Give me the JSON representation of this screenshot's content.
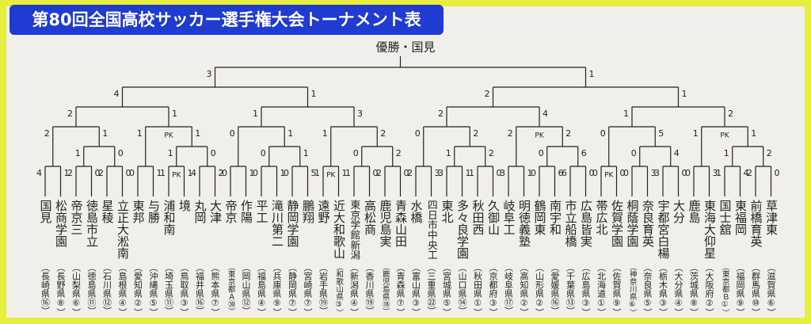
{
  "header": {
    "title": "第80回全国高校サッカー選手権大会トーナメント表",
    "champion": "優勝・国見"
  },
  "bracket": {
    "score": [
      3,
      1
    ],
    "matches": [
      {
        "score": [
          4,
          1
        ],
        "matches": [
          {
            "score": [
              2,
              1
            ],
            "matches": [
              {
                "score": [
                  2,
                  1
                ],
                "matches": [
                  {
                    "score": [
                      4,
                      1
                    ],
                    "matches": [
                      {
                        "name": "国見",
                        "region": "（長崎県⑯）"
                      },
                      {
                        "name": "松商学園",
                        "region": "（長野県⑧）"
                      }
                    ]
                  },
                  {
                    "score": [
                      1,
                      0
                    ],
                    "matches": [
                      {
                        "score": [
                          2,
                          0
                        ],
                        "matches": [
                          {
                            "name": "帝京三",
                            "region": "（山梨県⑥）"
                          },
                          {
                            "name": "徳島市立",
                            "region": "（徳島県⑪）"
                          }
                        ]
                      },
                      {
                        "score": [
                          2,
                          0
                        ],
                        "matches": [
                          {
                            "name": "星稜",
                            "region": "（石川県⑫）"
                          },
                          {
                            "name": "立正大淞南",
                            "region": "（島根県④）"
                          }
                        ]
                      }
                    ]
                  }
                ]
              },
              {
                "score": [
                  1,
                  1
                ],
                "pk": "PK",
                "matches": [
                  {
                    "score": [
                      0,
                      1
                    ],
                    "matches": [
                      {
                        "name": "東邦",
                        "region": "（愛知県②）"
                      },
                      {
                        "name": "与勝",
                        "region": "（沖縄県⑤）"
                      }
                    ]
                  },
                  {
                    "score": [
                      1,
                      0
                    ],
                    "matches": [
                      {
                        "score": [
                          1,
                          1
                        ],
                        "pk": "PK",
                        "matches": [
                          {
                            "name": "浦和南",
                            "region": "（埼玉県⑪）"
                          },
                          {
                            "name": "境",
                            "region": "（鳥取県③）"
                          }
                        ]
                      },
                      {
                        "score": [
                          4,
                          2
                        ],
                        "matches": [
                          {
                            "name": "丸岡",
                            "region": "（福井県⑯）"
                          },
                          {
                            "name": "大津",
                            "region": "（熊本県⑦）"
                          }
                        ]
                      }
                    ]
                  }
                ]
              }
            ]
          },
          {
            "score": [
              1,
              3
            ],
            "matches": [
              {
                "score": [
                  0,
                  1
                ],
                "matches": [
                  {
                    "score": [
                      0,
                      1
                    ],
                    "matches": [
                      {
                        "name": "帝京",
                        "region": "（東京都Ａ㉚）"
                      },
                      {
                        "name": "作陽",
                        "region": "（岡山県⑫）"
                      }
                    ]
                  },
                  {
                    "score": [
                      0,
                      1
                    ],
                    "matches": [
                      {
                        "score": [
                          0,
                          1
                        ],
                        "matches": [
                          {
                            "name": "平工",
                            "region": "（福島県④）"
                          },
                          {
                            "name": "滝川第二",
                            "region": "（兵庫県⑨）"
                          }
                        ]
                      },
                      {
                        "score": [
                          0,
                          5
                        ],
                        "matches": [
                          {
                            "name": "静岡学園",
                            "region": "（静岡県⑦）"
                          },
                          {
                            "name": "鵬翔",
                            "region": "（宮崎県⑦）"
                          }
                        ]
                      }
                    ]
                  }
                ]
              },
              {
                "score": [
                  1,
                  2
                ],
                "matches": [
                  {
                    "score": [
                      1,
                      1
                    ],
                    "pk": "PK",
                    "matches": [
                      {
                        "name": "遠野",
                        "region": "（岩手県⑲）"
                      },
                      {
                        "name": "近大和歌山",
                        "region": "（和歌山県③）"
                      }
                    ]
                  },
                  {
                    "score": [
                      0,
                      2
                    ],
                    "matches": [
                      {
                        "score": [
                          1,
                          0
                        ],
                        "matches": [
                          {
                            "name": "東京学館新潟",
                            "region": "（新潟県④）"
                          },
                          {
                            "name": "高松商",
                            "region": "（香川県⑲）"
                          }
                        ]
                      },
                      {
                        "score": [
                          2,
                          0
                        ],
                        "matches": [
                          {
                            "name": "鹿児島実",
                            "region": "（鹿児島県⑱）"
                          },
                          {
                            "name": "青森山田",
                            "region": "（青森県⑦）"
                          }
                        ]
                      }
                    ]
                  }
                ]
              }
            ]
          }
        ]
      },
      {
        "score": [
          2,
          1
        ],
        "matches": [
          {
            "score": [
              2,
              4
            ],
            "matches": [
              {
                "score": [
                  0,
                  2
                ],
                "matches": [
                  {
                    "score": [
                      2,
                      3
                    ],
                    "matches": [
                      {
                        "name": "水橋",
                        "region": "（富山県③）"
                      },
                      {
                        "name": "四日市中央工",
                        "region": "（三重県㉒）"
                      }
                    ]
                  },
                  {
                    "score": [
                      1,
                      2
                    ],
                    "matches": [
                      {
                        "score": [
                          3,
                          1
                        ],
                        "matches": [
                          {
                            "name": "東北",
                            "region": "（宮城県⑤）"
                          },
                          {
                            "name": "多々良学園",
                            "region": "（山口県⑭）"
                          }
                        ]
                      },
                      {
                        "score": [
                          1,
                          0
                        ],
                        "matches": [
                          {
                            "name": "秋田西",
                            "region": "（秋田県①）"
                          },
                          {
                            "name": "久御山",
                            "region": "（京都府③）"
                          }
                        ]
                      }
                    ]
                  }
                ]
              },
              {
                "score": [
                  2,
                  2
                ],
                "pk": "PK",
                "matches": [
                  {
                    "score": [
                      3,
                      1
                    ],
                    "matches": [
                      {
                        "name": "岐阜工",
                        "region": "（岐阜県⑰）"
                      },
                      {
                        "name": "明徳義塾",
                        "region": "（高知県②）"
                      }
                    ]
                  },
                  {
                    "score": [
                      0,
                      6
                    ],
                    "matches": [
                      {
                        "score": [
                          0,
                          6
                        ],
                        "matches": [
                          {
                            "name": "鶴岡東",
                            "region": "（山形県②）"
                          },
                          {
                            "name": "南宇和",
                            "region": "（愛媛県⑯）"
                          }
                        ]
                      },
                      {
                        "score": [
                          6,
                          0
                        ],
                        "matches": [
                          {
                            "name": "市立船橋",
                            "region": "（千葉県⑬）"
                          },
                          {
                            "name": "広島皆実",
                            "region": "（広島県③）"
                          }
                        ]
                      }
                    ]
                  }
                ]
              }
            ]
          },
          {
            "score": [
              1,
              2
            ],
            "matches": [
              {
                "score": [
                  0,
                  5
                ],
                "matches": [
                  {
                    "score": [
                      0,
                      0
                    ],
                    "pk": "PK",
                    "matches": [
                      {
                        "name": "帯広北",
                        "region": "（北海道①）"
                      },
                      {
                        "name": "佐賀学園",
                        "region": "（佐賀県⑨）"
                      }
                    ]
                  },
                  {
                    "score": [
                      0,
                      4
                    ],
                    "matches": [
                      {
                        "score": [
                          0,
                          3
                        ],
                        "matches": [
                          {
                            "name": "桐蔭学園",
                            "region": "（神奈川県⑥）"
                          },
                          {
                            "name": "奈良育英",
                            "region": "（奈良県⑤）"
                          }
                        ]
                      },
                      {
                        "score": [
                          3,
                          0
                        ],
                        "matches": [
                          {
                            "name": "宇都宮白楊",
                            "region": "（栃木県③）"
                          },
                          {
                            "name": "大分",
                            "region": "（大分県④）"
                          }
                        ]
                      }
                    ]
                  }
                ]
              },
              {
                "score": [
                  1,
                  1
                ],
                "pk": "PK",
                "matches": [
                  {
                    "score": [
                      0,
                      3
                    ],
                    "matches": [
                      {
                        "name": "鹿島",
                        "region": "（茨城県⑧）"
                      },
                      {
                        "name": "東海大仰星",
                        "region": "（大阪府②）"
                      }
                    ]
                  },
                  {
                    "score": [
                      1,
                      2
                    ],
                    "matches": [
                      {
                        "score": [
                          1,
                          4
                        ],
                        "matches": [
                          {
                            "name": "国士舘",
                            "region": "（東京都Ｂ①）"
                          },
                          {
                            "name": "東福岡",
                            "region": "（福岡県⑨）"
                          }
                        ]
                      },
                      {
                        "score": [
                          2,
                          0
                        ],
                        "matches": [
                          {
                            "name": "前橋育英",
                            "region": "（群馬県⑩）"
                          },
                          {
                            "name": "草津東",
                            "region": "（滋賀県⑥）"
                          }
                        ]
                      }
                    ]
                  }
                ]
              }
            ]
          }
        ]
      }
    ]
  }
}
